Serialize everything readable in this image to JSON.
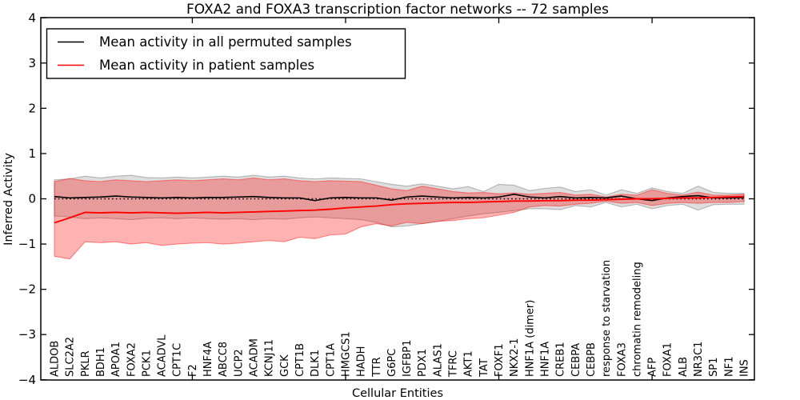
{
  "chart_data": {
    "type": "line",
    "title": "FOXA2 and FOXA3 transcription factor networks -- 72 samples",
    "xlabel": "Cellular Entities",
    "ylabel": "Inferred Activity",
    "ylim": [
      -4,
      4
    ],
    "yticks": [
      4,
      3,
      2,
      1,
      0,
      -1,
      -2,
      -3,
      -4
    ],
    "ytick_labels": [
      "4",
      "3",
      "2",
      "1",
      "0",
      "−1",
      "−2",
      "−3",
      "−4"
    ],
    "x_major_tick_indices": [
      9,
      19,
      29,
      39
    ],
    "grid": false,
    "legend_position": "upper left",
    "categories": [
      "ALDOB",
      "SLC2A2",
      "PKLR",
      "BDH1",
      "APOA1",
      "FOXA2",
      "PCK1",
      "ACADVL",
      "CPT1C",
      "F2",
      "HNF4A",
      "ABCC8",
      "UCP2",
      "ACADM",
      "KCNJ11",
      "GCK",
      "CPT1B",
      "DLK1",
      "CPT1A",
      "HMGCS1",
      "HADH",
      "TTR",
      "G6PC",
      "IGFBP1",
      "PDX1",
      "ALAS1",
      "TFRC",
      "AKT1",
      "TAT",
      "FOXF1",
      "NKX2-1",
      "HNF1A (dimer)",
      "HNF1A",
      "CREB1",
      "CEBPA",
      "CEBPB",
      "response to starvation",
      "FOXA3",
      "chromatin remodeling",
      "AFP",
      "FOXA1",
      "ALB",
      "NR3C1",
      "SP1",
      "NF1",
      "INS"
    ],
    "series": [
      {
        "name": "Mean activity in all permuted samples",
        "color": "#000000",
        "values": [
          0.05,
          0.02,
          0.03,
          0.04,
          0.06,
          0.04,
          0.03,
          0.02,
          0.03,
          0.02,
          0.03,
          0.03,
          0.04,
          0.05,
          0.03,
          0.02,
          0.02,
          -0.04,
          0.02,
          0.03,
          0.02,
          0.02,
          -0.03,
          0.04,
          0.06,
          0.04,
          0.02,
          0.03,
          0.02,
          0.04,
          0.1,
          0.04,
          0.02,
          0.05,
          0.02,
          0.03,
          0.02,
          0.06,
          0.0,
          -0.04,
          0.02,
          0.05,
          0.07,
          0.02,
          0.02,
          0.03
        ]
      },
      {
        "name": "Mean activity in patient samples",
        "color": "#ff0000",
        "values": [
          -0.53,
          -0.42,
          -0.3,
          -0.31,
          -0.3,
          -0.31,
          -0.3,
          -0.31,
          -0.32,
          -0.31,
          -0.3,
          -0.31,
          -0.3,
          -0.29,
          -0.28,
          -0.27,
          -0.26,
          -0.25,
          -0.23,
          -0.2,
          -0.18,
          -0.16,
          -0.13,
          -0.11,
          -0.1,
          -0.09,
          -0.08,
          -0.08,
          -0.07,
          -0.06,
          -0.05,
          -0.05,
          -0.04,
          -0.04,
          -0.03,
          -0.03,
          -0.02,
          -0.01,
          0.0,
          0.0,
          0.01,
          0.02,
          0.02,
          0.03,
          0.04,
          0.05
        ]
      }
    ],
    "bands": [
      {
        "name": "permuted samples ± std",
        "color": "#000000",
        "alpha": 0.13,
        "upper": [
          0.42,
          0.44,
          0.5,
          0.46,
          0.5,
          0.52,
          0.47,
          0.46,
          0.48,
          0.46,
          0.48,
          0.5,
          0.48,
          0.52,
          0.48,
          0.5,
          0.46,
          0.44,
          0.46,
          0.45,
          0.44,
          0.38,
          0.32,
          0.28,
          0.33,
          0.28,
          0.22,
          0.27,
          0.16,
          0.32,
          0.3,
          0.18,
          0.23,
          0.26,
          0.16,
          0.2,
          0.08,
          0.2,
          0.12,
          0.24,
          0.16,
          0.12,
          0.28,
          0.14,
          0.12,
          0.12
        ],
        "lower": [
          -0.38,
          -0.4,
          -0.44,
          -0.42,
          -0.44,
          -0.46,
          -0.43,
          -0.42,
          -0.44,
          -0.42,
          -0.44,
          -0.45,
          -0.44,
          -0.46,
          -0.44,
          -0.45,
          -0.42,
          -0.4,
          -0.42,
          -0.44,
          -0.46,
          -0.52,
          -0.62,
          -0.6,
          -0.55,
          -0.5,
          -0.44,
          -0.38,
          -0.33,
          -0.3,
          -0.26,
          -0.22,
          -0.22,
          -0.24,
          -0.15,
          -0.18,
          -0.08,
          -0.18,
          -0.12,
          -0.22,
          -0.15,
          -0.12,
          -0.25,
          -0.13,
          -0.12,
          -0.12
        ]
      },
      {
        "name": "patient samples ± std",
        "color": "#ff0000",
        "alpha": 0.3,
        "upper": [
          0.38,
          0.45,
          0.4,
          0.38,
          0.42,
          0.4,
          0.38,
          0.4,
          0.42,
          0.4,
          0.42,
          0.44,
          0.42,
          0.46,
          0.42,
          0.44,
          0.4,
          0.38,
          0.4,
          0.39,
          0.38,
          0.3,
          0.22,
          0.18,
          0.28,
          0.22,
          0.16,
          0.13,
          0.14,
          0.11,
          0.13,
          0.1,
          0.12,
          0.14,
          0.08,
          0.1,
          0.04,
          0.1,
          0.08,
          0.2,
          0.12,
          0.08,
          0.15,
          0.08,
          0.08,
          0.1
        ],
        "lower": [
          -1.27,
          -1.33,
          -0.95,
          -0.97,
          -0.95,
          -1.0,
          -0.97,
          -1.03,
          -1.0,
          -0.98,
          -0.97,
          -1.0,
          -0.98,
          -0.95,
          -0.92,
          -0.95,
          -0.85,
          -0.88,
          -0.8,
          -0.78,
          -0.62,
          -0.55,
          -0.6,
          -0.52,
          -0.55,
          -0.5,
          -0.48,
          -0.44,
          -0.42,
          -0.36,
          -0.3,
          -0.18,
          -0.15,
          -0.16,
          -0.12,
          -0.1,
          -0.05,
          -0.1,
          -0.08,
          -0.15,
          -0.1,
          -0.08,
          -0.1,
          -0.08,
          -0.08,
          -0.06
        ]
      }
    ],
    "zero_line": {
      "y": 0,
      "style": "dotted",
      "color": "#000000"
    }
  },
  "legend": {
    "entries": [
      {
        "label": "Mean activity in all permuted samples",
        "color": "#000000"
      },
      {
        "label": "Mean activity in patient samples",
        "color": "#ff0000"
      }
    ]
  }
}
